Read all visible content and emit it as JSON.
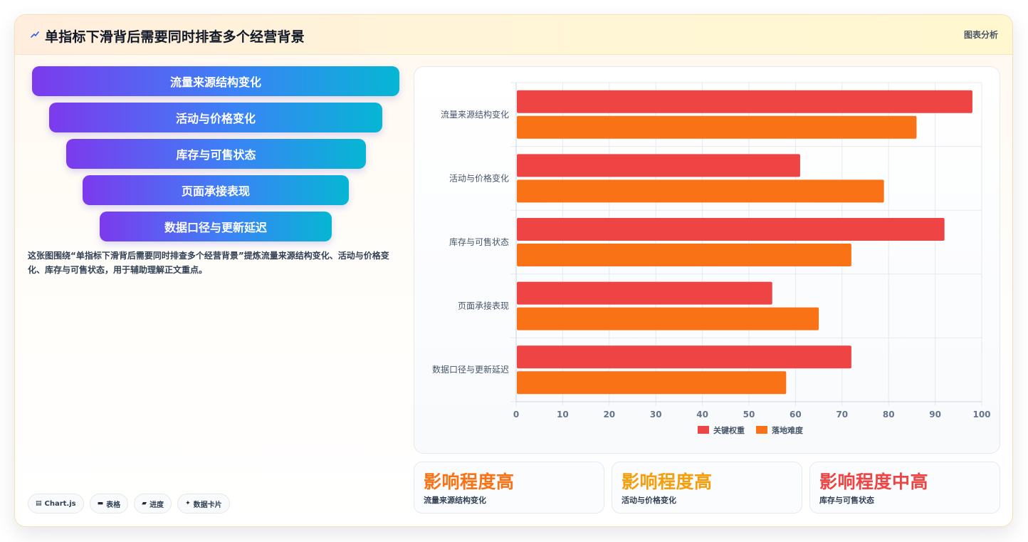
{
  "header": {
    "title": "单指标下滑背后需要同时排查多个经营背景",
    "tag": "图表分析"
  },
  "funnel": {
    "items": [
      "流量来源结构变化",
      "活动与价格变化",
      "库存与可售状态",
      "页面承接表现",
      "数据口径与更新延迟"
    ]
  },
  "description": "这张图围绕“单指标下滑背后需要同时排查多个经营背景”提炼流量来源结构变化、活动与价格变化、库存与可售状态，用于辅助理解正文重点。",
  "chips": [
    {
      "icon": "chart-icon",
      "label": "Chart.js"
    },
    {
      "icon": "table-icon",
      "label": "表格"
    },
    {
      "icon": "progress-icon",
      "label": "进度"
    },
    {
      "icon": "card-icon",
      "label": "数据卡片"
    }
  ],
  "kpis": [
    {
      "value": "影响程度高",
      "label": "流量来源结构变化",
      "color": "#f97316"
    },
    {
      "value": "影响程度高",
      "label": "活动与价格变化",
      "color": "#f59e0b"
    },
    {
      "value": "影响程度中高",
      "label": "库存与可售状态",
      "color": "#ef4444"
    }
  ],
  "chart_data": {
    "type": "bar",
    "orientation": "horizontal",
    "categories": [
      "流量来源结构变化",
      "活动与价格变化",
      "库存与可售状态",
      "页面承接表现",
      "数据口径与更新延迟"
    ],
    "series": [
      {
        "name": "关键权重",
        "values": [
          98,
          61,
          92,
          55,
          72
        ],
        "color": "#ef4444"
      },
      {
        "name": "落地难度",
        "values": [
          86,
          79,
          72,
          65,
          58
        ],
        "color": "#f97316"
      }
    ],
    "xlim": [
      0,
      100
    ],
    "xticks": [
      "0",
      "10",
      "20",
      "30",
      "40",
      "50",
      "60",
      "70",
      "80",
      "90",
      "100"
    ],
    "grid": true,
    "legend": "bottom"
  }
}
